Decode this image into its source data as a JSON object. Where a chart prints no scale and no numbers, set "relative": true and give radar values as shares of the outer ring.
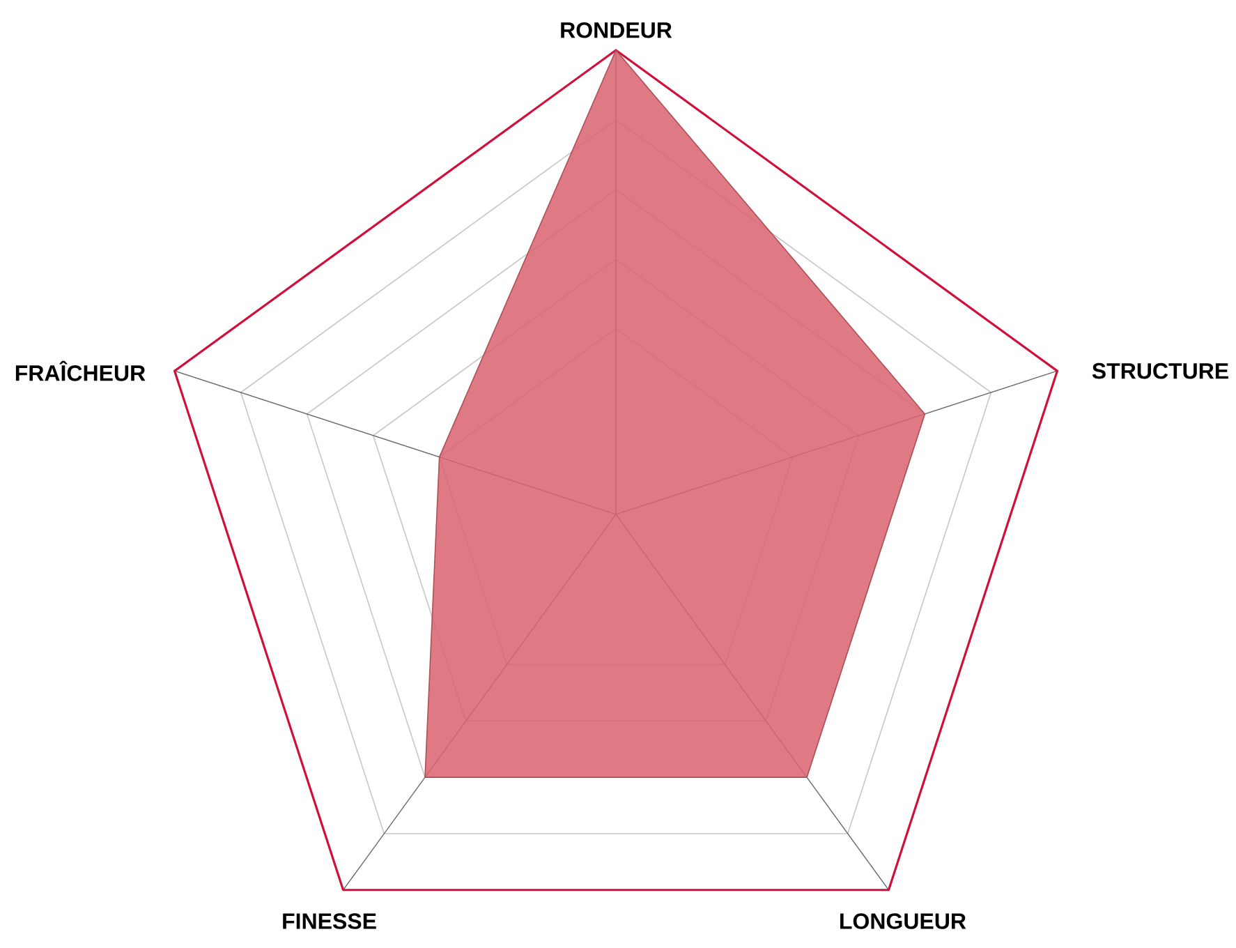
{
  "chart_data": {
    "type": "radar",
    "relative": true,
    "grid": true,
    "categories": [
      "RONDEUR",
      "STRUCTURE",
      "LONGUEUR",
      "FINESSE",
      "FRAÎCHEUR"
    ],
    "series": [
      {
        "color": "#d9636e",
        "values": [
          1,
          0.7,
          0.7,
          0.7,
          0.4
        ]
      }
    ]
  }
}
